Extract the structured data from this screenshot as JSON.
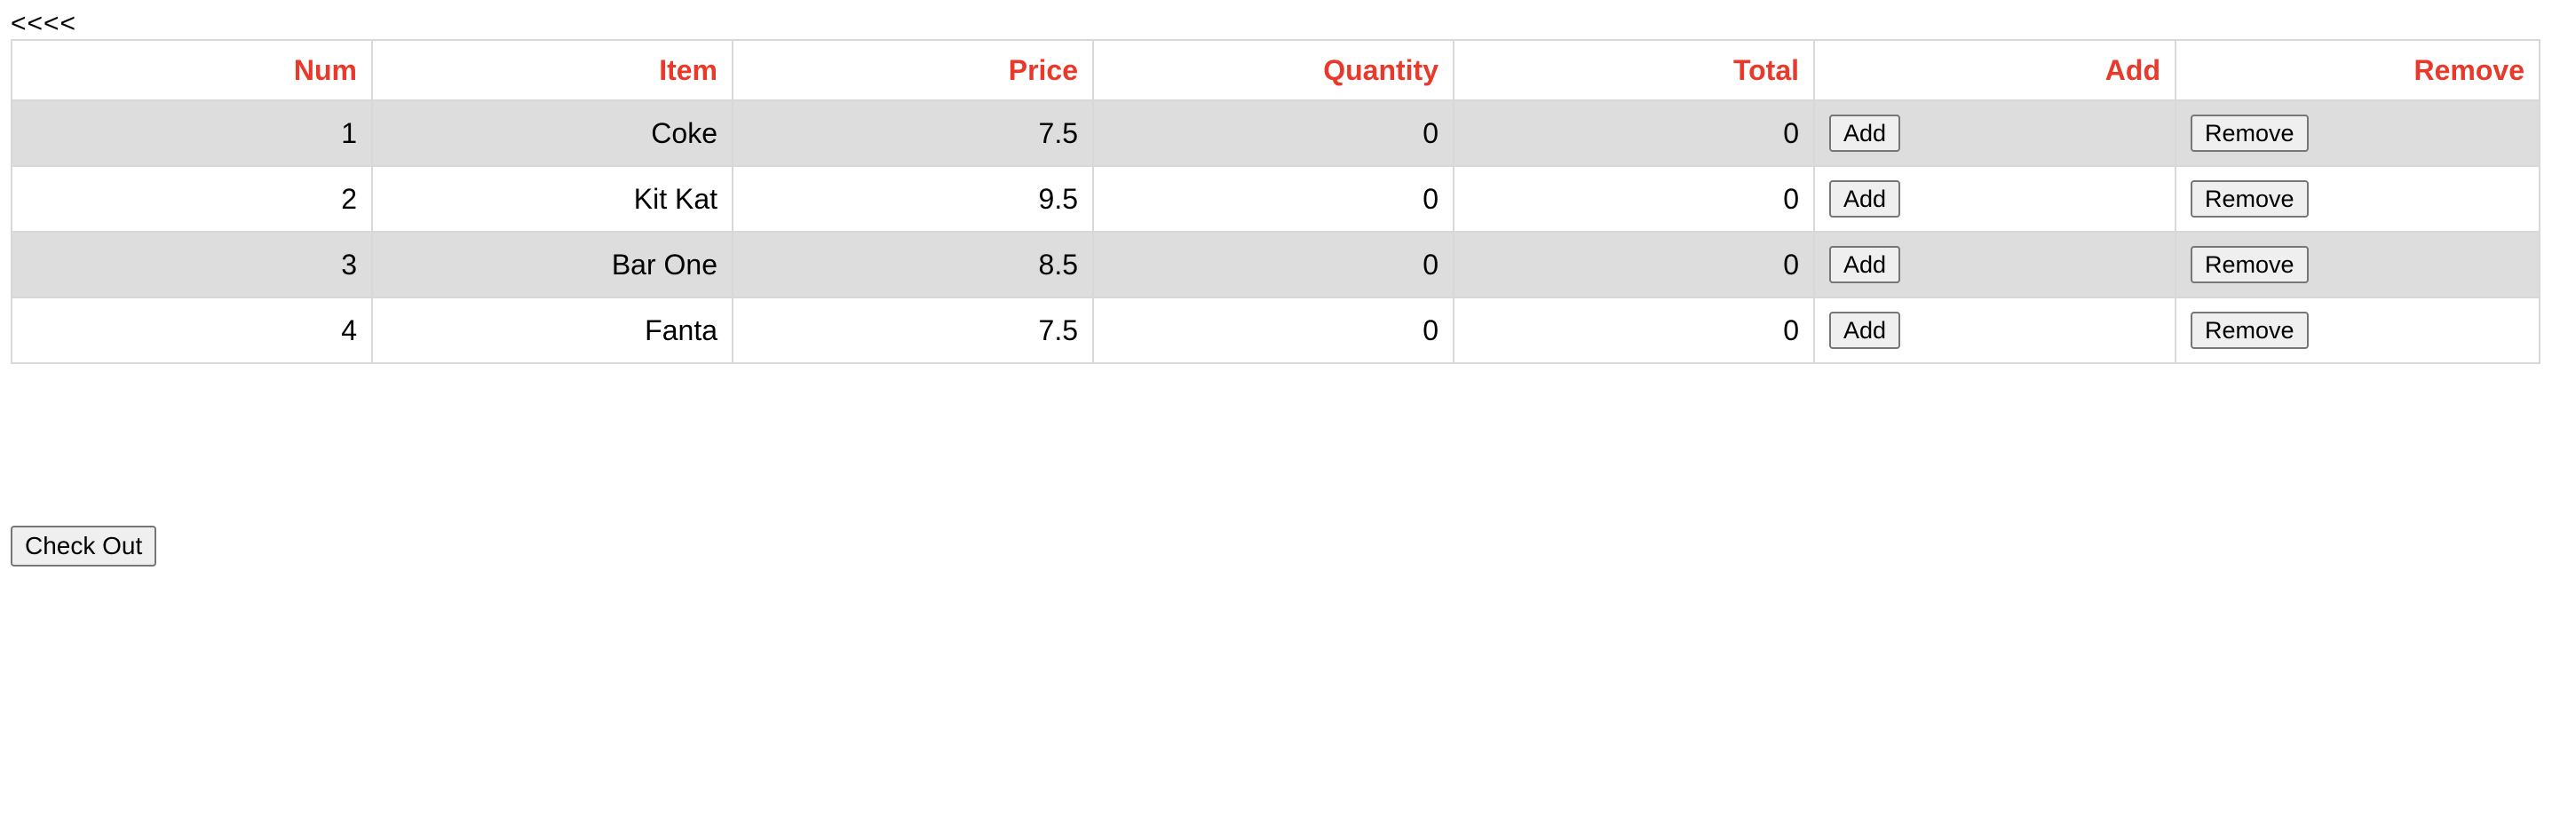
{
  "nav": {
    "back_label": "<<<<"
  },
  "table": {
    "headers": [
      "Num",
      "Item",
      "Price",
      "Quantity",
      "Total",
      "Add",
      "Remove"
    ],
    "rows": [
      {
        "num": "1",
        "item": "Coke",
        "price": "7.5",
        "quantity": "0",
        "total": "0",
        "add_label": "Add",
        "remove_label": "Remove"
      },
      {
        "num": "2",
        "item": "Kit Kat",
        "price": "9.5",
        "quantity": "0",
        "total": "0",
        "add_label": "Add",
        "remove_label": "Remove"
      },
      {
        "num": "3",
        "item": "Bar One",
        "price": "8.5",
        "quantity": "0",
        "total": "0",
        "add_label": "Add",
        "remove_label": "Remove"
      },
      {
        "num": "4",
        "item": "Fanta",
        "price": "7.5",
        "quantity": "0",
        "total": "0",
        "add_label": "Add",
        "remove_label": "Remove"
      }
    ]
  },
  "checkout": {
    "label": "Check Out"
  },
  "colors": {
    "header_text": "#e8392b",
    "row_shade": "#dddddd",
    "border": "#d8d8d8"
  }
}
